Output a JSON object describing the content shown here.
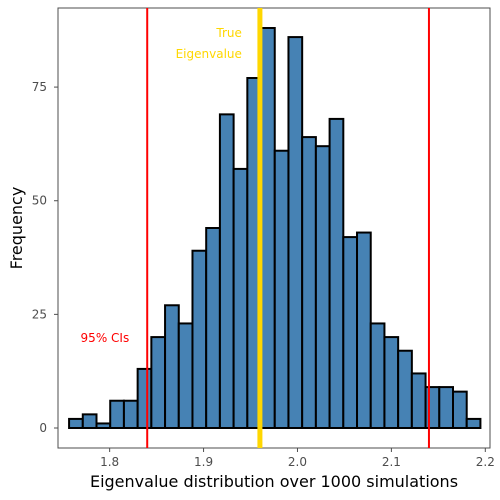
{
  "chart_data": {
    "type": "bar",
    "subtype": "histogram",
    "xlabel": "Eigenvalue distribution over 1000 simulations",
    "ylabel": "Frequency",
    "xlim": [
      1.745,
      2.205
    ],
    "ylim": [
      -4.4,
      92.4
    ],
    "x_ticks": [
      1.8,
      1.9,
      2.0,
      2.1,
      2.2
    ],
    "x_tick_labels": [
      "1.8",
      "1.9",
      "2.0",
      "2.1",
      "2.2"
    ],
    "y_ticks": [
      0,
      25,
      50,
      75
    ],
    "y_tick_labels": [
      "0",
      "25",
      "50",
      "75"
    ],
    "bin_width": 0.0146,
    "bin_start": 1.7568,
    "values": [
      2,
      3,
      1,
      6,
      6,
      13,
      20,
      27,
      23,
      39,
      44,
      69,
      57,
      77,
      88,
      61,
      86,
      64,
      62,
      68,
      42,
      43,
      23,
      20,
      17,
      12,
      9,
      9,
      8,
      2
    ],
    "bar_fill": "#4682b4",
    "bar_outline": "#000000",
    "grid": false,
    "vlines": [
      {
        "x": 1.84,
        "color": "#ff0000",
        "role": "ci_lower"
      },
      {
        "x": 2.14,
        "color": "#ff0000",
        "role": "ci_upper"
      },
      {
        "x": 1.96,
        "color": "#ffd700",
        "role": "true_value"
      }
    ],
    "annotations": [
      {
        "id": "ci",
        "lines": [
          "95% CIs"
        ],
        "color": "#ff0000"
      },
      {
        "id": "true",
        "lines": [
          "True",
          "Eigenvalue"
        ],
        "color": "#ffd700"
      }
    ]
  }
}
